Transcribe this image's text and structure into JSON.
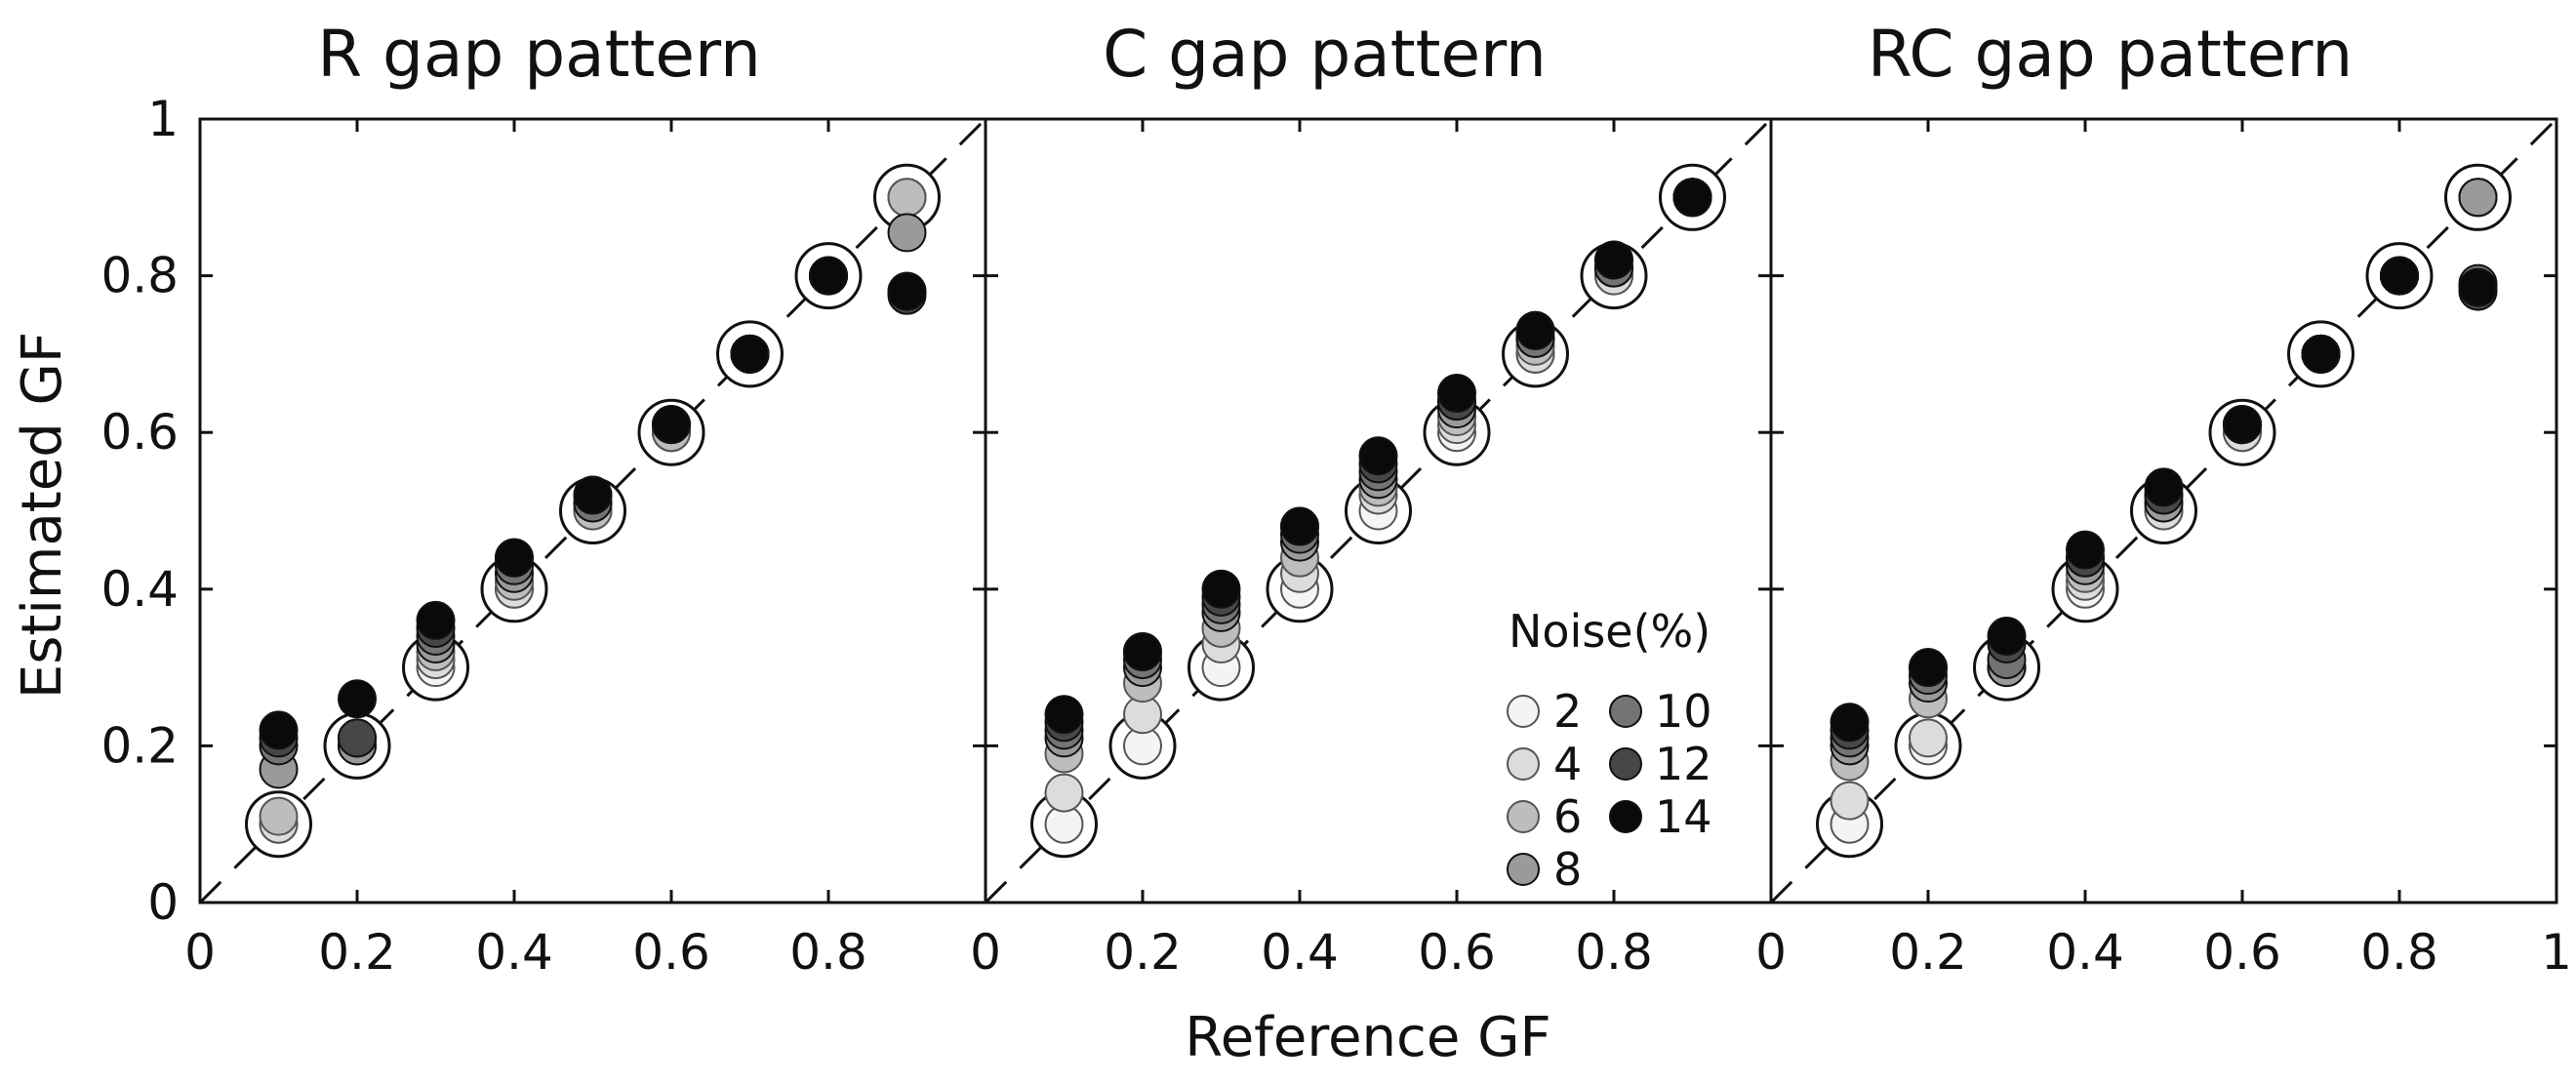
{
  "chart_data": {
    "type": "scatter",
    "xlabel": "Reference GF",
    "ylabel": "Estimated GF",
    "xlim": [
      0,
      1
    ],
    "ylim": [
      0,
      1
    ],
    "reference_line": "y = x (dashed)",
    "reference_marker": "open circle at (x, x)",
    "legend": {
      "title": "Noise(%)",
      "levels": [
        "2",
        "4",
        "6",
        "8",
        "10",
        "12",
        "14"
      ],
      "colors": [
        "#f4f4f4",
        "#dcdcdc",
        "#bdbdbd",
        "#9a9a9a",
        "#747474",
        "#474747",
        "#0a0a0a"
      ],
      "placement": "inside middle panel, lower-right"
    },
    "panels": [
      {
        "title": "R gap pattern",
        "x_ticks": [
          "0",
          "0.2",
          "0.4",
          "0.6",
          "0.8"
        ],
        "y_ticks": [
          "0",
          "0.2",
          "0.4",
          "0.6",
          "0.8",
          "1"
        ],
        "x": [
          0.1,
          0.2,
          0.3,
          0.4,
          0.5,
          0.6,
          0.7,
          0.8,
          0.9
        ],
        "series": [
          {
            "noise": "2",
            "values": [
              0.1,
              0.2,
              0.3,
              0.4,
              0.5,
              0.6,
              0.7,
              0.8,
              0.9
            ]
          },
          {
            "noise": "4",
            "values": [
              0.1,
              0.2,
              0.31,
              0.4,
              0.5,
              0.6,
              0.7,
              0.8,
              0.9
            ]
          },
          {
            "noise": "6",
            "values": [
              0.11,
              0.2,
              0.32,
              0.41,
              0.5,
              0.6,
              0.7,
              0.8,
              0.9
            ]
          },
          {
            "noise": "8",
            "values": [
              0.17,
              0.2,
              0.33,
              0.42,
              0.51,
              0.61,
              0.7,
              0.8,
              0.855
            ]
          },
          {
            "noise": "10",
            "values": [
              0.2,
              0.21,
              0.34,
              0.43,
              0.51,
              0.61,
              0.7,
              0.8,
              0.78
            ]
          },
          {
            "noise": "12",
            "values": [
              0.21,
              0.21,
              0.35,
              0.44,
              0.52,
              0.61,
              0.7,
              0.8,
              0.775
            ]
          },
          {
            "noise": "14",
            "values": [
              0.22,
              0.26,
              0.36,
              0.44,
              0.52,
              0.61,
              0.7,
              0.8,
              0.78
            ]
          }
        ]
      },
      {
        "title": "C gap pattern",
        "x_ticks": [
          "0",
          "0.2",
          "0.4",
          "0.6",
          "0.8"
        ],
        "y_ticks": [],
        "x": [
          0.1,
          0.2,
          0.3,
          0.4,
          0.5,
          0.6,
          0.7,
          0.8,
          0.9
        ],
        "series": [
          {
            "noise": "2",
            "values": [
              0.1,
              0.2,
              0.3,
              0.4,
              0.5,
              0.6,
              0.7,
              0.8,
              0.9
            ]
          },
          {
            "noise": "4",
            "values": [
              0.14,
              0.24,
              0.33,
              0.42,
              0.52,
              0.61,
              0.7,
              0.8,
              0.9
            ]
          },
          {
            "noise": "6",
            "values": [
              0.19,
              0.28,
              0.35,
              0.44,
              0.53,
              0.62,
              0.71,
              0.81,
              0.9
            ]
          },
          {
            "noise": "8",
            "values": [
              0.21,
              0.3,
              0.37,
              0.46,
              0.54,
              0.63,
              0.72,
              0.81,
              0.9
            ]
          },
          {
            "noise": "10",
            "values": [
              0.22,
              0.31,
              0.38,
              0.47,
              0.55,
              0.64,
              0.72,
              0.81,
              0.9
            ]
          },
          {
            "noise": "12",
            "values": [
              0.23,
              0.32,
              0.39,
              0.48,
              0.56,
              0.64,
              0.73,
              0.82,
              0.9
            ]
          },
          {
            "noise": "14",
            "values": [
              0.24,
              0.32,
              0.4,
              0.48,
              0.57,
              0.65,
              0.73,
              0.82,
              0.9
            ]
          }
        ]
      },
      {
        "title": "RC gap pattern",
        "x_ticks": [
          "0",
          "0.2",
          "0.4",
          "0.6",
          "0.8",
          "1"
        ],
        "y_ticks": [],
        "x": [
          0.1,
          0.2,
          0.3,
          0.4,
          0.5,
          0.6,
          0.7,
          0.8,
          0.9
        ],
        "series": [
          {
            "noise": "2",
            "values": [
              0.1,
              0.2,
              0.3,
              0.4,
              0.5,
              0.6,
              0.7,
              0.8,
              0.9
            ]
          },
          {
            "noise": "4",
            "values": [
              0.13,
              0.21,
              0.3,
              0.41,
              0.5,
              0.6,
              0.7,
              0.8,
              0.9
            ]
          },
          {
            "noise": "6",
            "values": [
              0.18,
              0.26,
              0.3,
              0.42,
              0.51,
              0.61,
              0.7,
              0.8,
              0.9
            ]
          },
          {
            "noise": "8",
            "values": [
              0.2,
              0.28,
              0.3,
              0.43,
              0.51,
              0.61,
              0.7,
              0.8,
              0.9
            ]
          },
          {
            "noise": "10",
            "values": [
              0.21,
              0.29,
              0.31,
              0.44,
              0.52,
              0.61,
              0.7,
              0.8,
              0.79
            ]
          },
          {
            "noise": "12",
            "values": [
              0.22,
              0.3,
              0.33,
              0.44,
              0.52,
              0.61,
              0.7,
              0.8,
              0.78
            ]
          },
          {
            "noise": "14",
            "values": [
              0.23,
              0.3,
              0.34,
              0.45,
              0.53,
              0.61,
              0.7,
              0.8,
              0.785
            ]
          }
        ]
      }
    ]
  }
}
